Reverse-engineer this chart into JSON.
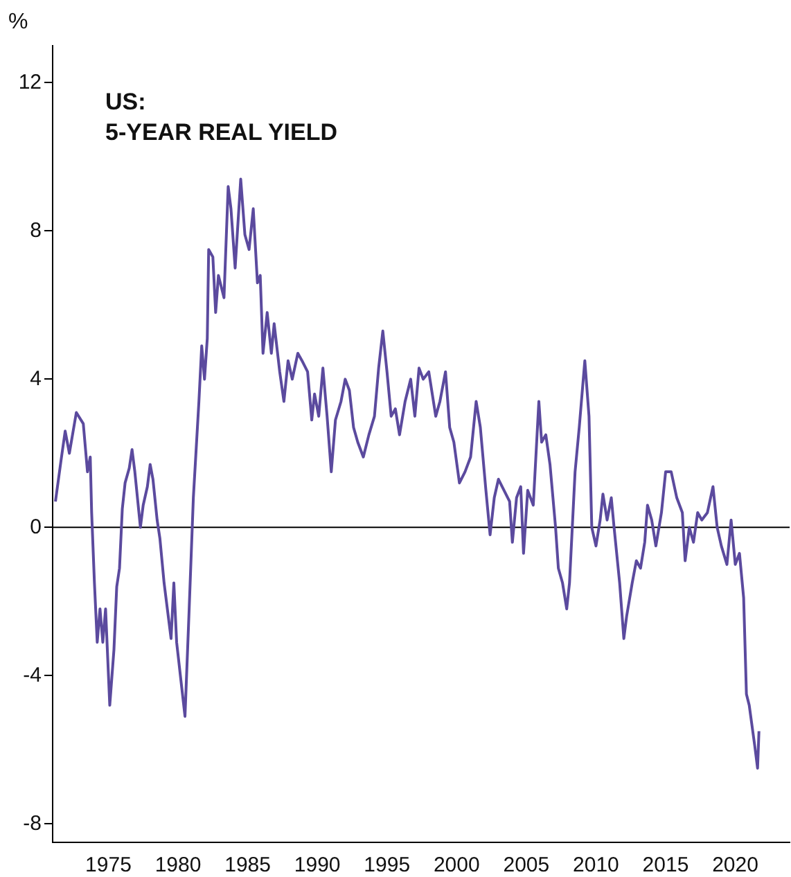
{
  "chart_data": {
    "type": "line",
    "title": "US:\n5-YEAR REAL YIELD",
    "ylabel": "%",
    "color": "#5b4a9e",
    "x": [
      1971.2,
      1971.6,
      1971.9,
      1972.2,
      1972.7,
      1973.2,
      1973.5,
      1973.7,
      1973.8,
      1974.0,
      1974.2,
      1974.4,
      1974.6,
      1974.8,
      1975.1,
      1975.4,
      1975.6,
      1975.8,
      1976.0,
      1976.2,
      1976.5,
      1976.7,
      1976.9,
      1977.3,
      1977.5,
      1977.8,
      1978.0,
      1978.2,
      1978.5,
      1978.7,
      1979.0,
      1979.3,
      1979.5,
      1979.7,
      1979.9,
      1980.2,
      1980.5,
      1980.8,
      1981.1,
      1981.3,
      1981.5,
      1981.7,
      1981.9,
      1982.1,
      1982.2,
      1982.5,
      1982.7,
      1982.9,
      1983.3,
      1983.6,
      1983.8,
      1984.1,
      1984.5,
      1984.8,
      1985.1,
      1985.4,
      1985.7,
      1985.9,
      1986.1,
      1986.4,
      1986.7,
      1986.9,
      1987.3,
      1987.6,
      1987.9,
      1988.2,
      1988.6,
      1988.9,
      1989.3,
      1989.6,
      1989.8,
      1990.1,
      1990.4,
      1990.7,
      1991.0,
      1991.3,
      1991.7,
      1992.0,
      1992.3,
      1992.6,
      1992.9,
      1993.3,
      1993.7,
      1994.1,
      1994.4,
      1994.7,
      1995.0,
      1995.3,
      1995.6,
      1995.9,
      1996.3,
      1996.7,
      1997.0,
      1997.3,
      1997.6,
      1998.0,
      1998.5,
      1998.8,
      1999.2,
      1999.5,
      1999.8,
      2000.2,
      2000.6,
      2001.0,
      2001.4,
      2001.7,
      2002.1,
      2002.4,
      2002.7,
      2003.0,
      2003.4,
      2003.8,
      2004.0,
      2004.3,
      2004.6,
      2004.8,
      2005.1,
      2005.5,
      2005.9,
      2006.1,
      2006.4,
      2006.7,
      2007.1,
      2007.3,
      2007.6,
      2007.9,
      2008.1,
      2008.5,
      2008.8,
      2009.2,
      2009.5,
      2009.7,
      2010.0,
      2010.3,
      2010.5,
      2010.8,
      2011.1,
      2011.3,
      2011.7,
      2012.0,
      2012.2,
      2012.6,
      2012.9,
      2013.2,
      2013.5,
      2013.7,
      2014.0,
      2014.3,
      2014.7,
      2015.0,
      2015.4,
      2015.8,
      2016.2,
      2016.4,
      2016.7,
      2017.0,
      2017.3,
      2017.6,
      2018.0,
      2018.4,
      2018.7,
      2019.0,
      2019.4,
      2019.7,
      2020.0,
      2020.3,
      2020.6,
      2020.8,
      2021.0,
      2021.4,
      2021.6,
      2021.7
    ],
    "values": [
      0.7,
      1.8,
      2.6,
      2.0,
      3.1,
      2.8,
      1.5,
      1.9,
      0.4,
      -1.5,
      -3.1,
      -2.2,
      -3.1,
      -2.2,
      -4.8,
      -3.3,
      -1.6,
      -1.1,
      0.5,
      1.2,
      1.6,
      2.1,
      1.5,
      0,
      0.6,
      1.1,
      1.7,
      1.3,
      0.2,
      -0.3,
      -1.5,
      -2.4,
      -3.0,
      -1.5,
      -3.1,
      -4.1,
      -5.1,
      -2.2,
      0.8,
      2.1,
      3.4,
      4.9,
      4.0,
      5.1,
      7.5,
      7.3,
      5.8,
      6.8,
      6.2,
      9.2,
      8.6,
      7.0,
      9.4,
      7.9,
      7.5,
      8.6,
      6.6,
      6.8,
      4.7,
      5.8,
      4.7,
      5.5,
      4.2,
      3.4,
      4.5,
      4.0,
      4.7,
      4.5,
      4.2,
      2.9,
      3.6,
      3.0,
      4.3,
      3.0,
      1.5,
      2.9,
      3.4,
      4.0,
      3.7,
      2.7,
      2.3,
      1.9,
      2.5,
      3.0,
      4.3,
      5.3,
      4.2,
      3.0,
      3.2,
      2.5,
      3.4,
      4.0,
      3.0,
      4.3,
      4.0,
      4.2,
      3.0,
      3.4,
      4.2,
      2.7,
      2.3,
      1.2,
      1.5,
      1.9,
      3.4,
      2.7,
      1.0,
      -0.2,
      0.8,
      1.3,
      1.0,
      0.7,
      -0.4,
      0.8,
      1.1,
      -0.7,
      1.0,
      0.6,
      3.4,
      2.3,
      2.5,
      1.7,
      0,
      -1.1,
      -1.5,
      -2.2,
      -1.5,
      1.5,
      2.7,
      4.5,
      3.0,
      0,
      -0.5,
      0.2,
      0.9,
      0.2,
      0.8,
      0,
      -1.5,
      -3.0,
      -2.4,
      -1.5,
      -0.9,
      -1.1,
      -0.4,
      0.6,
      0.2,
      -0.5,
      0.4,
      1.5,
      1.5,
      0.8,
      0.4,
      -0.9,
      0,
      -0.4,
      0.4,
      0.2,
      0.4,
      1.1,
      0,
      -0.5,
      -1.0,
      0.2,
      -1.0,
      -0.7,
      -1.9,
      -4.5,
      -4.8,
      -5.9,
      -6.5,
      -5.5
    ],
    "xlim": [
      1971.0,
      2023.9
    ],
    "xticks": [
      1975,
      1980,
      1985,
      1990,
      1995,
      2000,
      2005,
      2010,
      2015,
      2020
    ],
    "ylim": [
      -8.5,
      13
    ],
    "yticks": [
      -8,
      -4,
      0,
      4,
      8,
      12
    ],
    "ref_lines": [
      {
        "axis": "y",
        "value": 0,
        "color": "#000000"
      }
    ]
  }
}
